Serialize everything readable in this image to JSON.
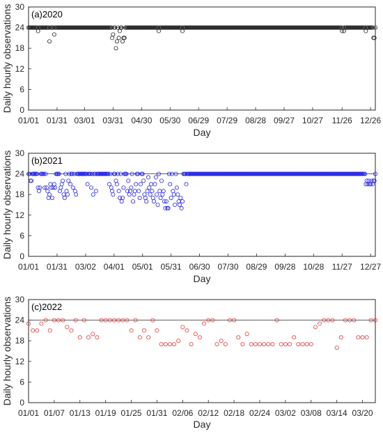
{
  "ylabel": "Daily hourly observations",
  "xlabel": "Day",
  "chart_data": [
    {
      "type": "scatter",
      "title": "(a)2020",
      "color": "#222222",
      "ylim": [
        0,
        30
      ],
      "yticks": [
        0,
        6,
        12,
        18,
        24,
        30
      ],
      "xlim": [
        0,
        365
      ],
      "xticks": [
        {
          "x": 0,
          "label": "01/01"
        },
        {
          "x": 30,
          "label": "01/31"
        },
        {
          "x": 59,
          "label": "03/01"
        },
        {
          "x": 89,
          "label": "03/31"
        },
        {
          "x": 119,
          "label": "04/30"
        },
        {
          "x": 149,
          "label": "05/30"
        },
        {
          "x": 179,
          "label": "06/29"
        },
        {
          "x": 209,
          "label": "07/29"
        },
        {
          "x": 239,
          "label": "08/28"
        },
        {
          "x": 269,
          "label": "09/27"
        },
        {
          "x": 299,
          "label": "10/27"
        },
        {
          "x": 330,
          "label": "11/26"
        },
        {
          "x": 360,
          "label": "12/26"
        }
      ],
      "grid": "y=24",
      "default_y": 24,
      "outliers": [
        [
          10,
          23
        ],
        [
          22,
          20
        ],
        [
          27,
          22
        ],
        [
          88,
          21
        ],
        [
          89,
          22
        ],
        [
          91,
          24
        ],
        [
          92,
          18
        ],
        [
          93,
          20
        ],
        [
          95,
          21
        ],
        [
          96,
          23
        ],
        [
          99,
          20
        ],
        [
          100,
          21
        ],
        [
          101,
          21
        ],
        [
          137,
          23
        ],
        [
          162,
          23
        ],
        [
          330,
          23
        ],
        [
          332,
          23
        ],
        [
          355,
          23
        ],
        [
          363,
          21
        ],
        [
          364,
          21
        ]
      ]
    },
    {
      "type": "scatter",
      "title": "(b)2021",
      "color": "#2323e6",
      "ylim": [
        0,
        30
      ],
      "yticks": [
        0,
        6,
        12,
        18,
        24,
        30
      ],
      "xlim": [
        0,
        365
      ],
      "xticks": [
        {
          "x": 0,
          "label": "01/01"
        },
        {
          "x": 30,
          "label": "01/31"
        },
        {
          "x": 60,
          "label": "03/02"
        },
        {
          "x": 90,
          "label": "04/01"
        },
        {
          "x": 120,
          "label": "05/01"
        },
        {
          "x": 150,
          "label": "05/31"
        },
        {
          "x": 180,
          "label": "06/30"
        },
        {
          "x": 210,
          "label": "07/30"
        },
        {
          "x": 240,
          "label": "08/29"
        },
        {
          "x": 270,
          "label": "09/28"
        },
        {
          "x": 300,
          "label": "10/28"
        },
        {
          "x": 330,
          "label": "11/27"
        },
        {
          "x": 360,
          "label": "12/27"
        }
      ],
      "grid": "y=24",
      "default_y": 24,
      "outliers": [
        [
          2,
          22
        ],
        [
          3,
          22
        ],
        [
          10,
          20
        ],
        [
          11,
          19
        ],
        [
          12,
          20
        ],
        [
          17,
          20
        ],
        [
          19,
          20
        ],
        [
          20,
          19
        ],
        [
          21,
          17
        ],
        [
          22,
          18
        ],
        [
          23,
          21
        ],
        [
          24,
          20
        ],
        [
          25,
          17
        ],
        [
          26,
          20
        ],
        [
          27,
          21
        ],
        [
          28,
          20
        ],
        [
          29,
          24
        ],
        [
          33,
          19
        ],
        [
          34,
          20
        ],
        [
          35,
          21
        ],
        [
          36,
          22
        ],
        [
          37,
          18
        ],
        [
          38,
          17
        ],
        [
          40,
          19
        ],
        [
          41,
          18
        ],
        [
          42,
          22
        ],
        [
          43,
          24
        ],
        [
          44,
          21
        ],
        [
          47,
          20
        ],
        [
          49,
          19
        ],
        [
          50,
          18
        ],
        [
          51,
          24
        ],
        [
          62,
          21
        ],
        [
          66,
          20
        ],
        [
          68,
          18
        ],
        [
          71,
          19
        ],
        [
          74,
          24
        ],
        [
          85,
          21
        ],
        [
          87,
          20
        ],
        [
          88,
          19
        ],
        [
          89,
          18
        ],
        [
          90,
          24
        ],
        [
          92,
          22
        ],
        [
          93,
          21
        ],
        [
          95,
          19
        ],
        [
          96,
          17
        ],
        [
          97,
          24
        ],
        [
          98,
          16
        ],
        [
          99,
          17
        ],
        [
          100,
          20
        ],
        [
          102,
          24
        ],
        [
          103,
          24
        ],
        [
          104,
          19
        ],
        [
          105,
          22
        ],
        [
          106,
          18
        ],
        [
          107,
          19
        ],
        [
          108,
          20
        ],
        [
          110,
          16
        ],
        [
          111,
          18
        ],
        [
          112,
          19
        ],
        [
          113,
          21
        ],
        [
          114,
          24
        ],
        [
          116,
          19
        ],
        [
          117,
          17
        ],
        [
          118,
          21
        ],
        [
          120,
          24
        ],
        [
          121,
          22
        ],
        [
          122,
          18
        ],
        [
          123,
          17
        ],
        [
          124,
          16
        ],
        [
          125,
          19
        ],
        [
          126,
          23
        ],
        [
          127,
          20
        ],
        [
          128,
          18
        ],
        [
          129,
          21
        ],
        [
          130,
          19
        ],
        [
          131,
          17
        ],
        [
          132,
          16
        ],
        [
          133,
          21
        ],
        [
          134,
          23
        ],
        [
          135,
          18
        ],
        [
          136,
          15
        ],
        [
          137,
          24
        ],
        [
          138,
          19
        ],
        [
          139,
          17
        ],
        [
          140,
          22
        ],
        [
          141,
          18
        ],
        [
          142,
          19
        ],
        [
          143,
          16
        ],
        [
          144,
          14
        ],
        [
          145,
          16
        ],
        [
          146,
          14
        ],
        [
          147,
          14
        ],
        [
          148,
          24
        ],
        [
          149,
          21
        ],
        [
          150,
          17
        ],
        [
          151,
          24
        ],
        [
          152,
          19
        ],
        [
          153,
          18
        ],
        [
          154,
          15
        ],
        [
          155,
          24
        ],
        [
          156,
          20
        ],
        [
          157,
          18
        ],
        [
          158,
          16
        ],
        [
          159,
          15
        ],
        [
          160,
          17
        ],
        [
          161,
          14
        ],
        [
          162,
          16
        ],
        [
          166,
          21
        ],
        [
          355,
          21
        ],
        [
          356,
          22
        ],
        [
          357,
          21
        ],
        [
          358,
          22
        ],
        [
          359,
          21
        ],
        [
          360,
          21
        ],
        [
          361,
          22
        ],
        [
          362,
          21
        ],
        [
          363,
          22
        ],
        [
          364,
          22
        ]
      ]
    },
    {
      "type": "scatter",
      "title": "(c)2022",
      "color": "#e23a3a",
      "ylim": [
        0,
        30
      ],
      "yticks": [
        0,
        6,
        12,
        18,
        24,
        30
      ],
      "xlim": [
        0,
        81
      ],
      "xticks": [
        {
          "x": 0,
          "label": "01/01"
        },
        {
          "x": 6,
          "label": "01/07"
        },
        {
          "x": 12,
          "label": "01/13"
        },
        {
          "x": 18,
          "label": "01/19"
        },
        {
          "x": 24,
          "label": "01/25"
        },
        {
          "x": 30,
          "label": "01/31"
        },
        {
          "x": 36,
          "label": "02/06"
        },
        {
          "x": 42,
          "label": "02/12"
        },
        {
          "x": 48,
          "label": "02/18"
        },
        {
          "x": 54,
          "label": "02/24"
        },
        {
          "x": 60,
          "label": "03/02"
        },
        {
          "x": 66,
          "label": "03/08"
        },
        {
          "x": 72,
          "label": "03/14"
        },
        {
          "x": 78,
          "label": "03/20"
        }
      ],
      "grid": "y=24",
      "x": [
        0,
        1,
        2,
        3,
        4,
        5,
        6,
        7,
        8,
        9,
        10,
        11,
        12,
        13,
        14,
        15,
        16,
        17,
        18,
        19,
        20,
        21,
        22,
        23,
        24,
        25,
        26,
        27,
        28,
        29,
        30,
        31,
        32,
        33,
        34,
        35,
        36,
        37,
        38,
        39,
        40,
        41,
        42,
        43,
        44,
        45,
        46,
        47,
        48,
        49,
        50,
        51,
        52,
        53,
        54,
        55,
        56,
        57,
        58,
        59,
        60,
        61,
        62,
        63,
        64,
        65,
        66,
        67,
        68,
        69,
        70,
        71,
        72,
        73,
        74,
        75,
        76,
        77,
        78,
        79,
        80,
        81
      ],
      "y": [
        23,
        21,
        21,
        23,
        24,
        21,
        24,
        24,
        24,
        22,
        21,
        24,
        19,
        24,
        19,
        20,
        19,
        24,
        24,
        24,
        24,
        24,
        24,
        24,
        21,
        24,
        19,
        21,
        19,
        24,
        21,
        17,
        17,
        17,
        17,
        18,
        22,
        21,
        17,
        20,
        19,
        23,
        24,
        24,
        17,
        18,
        17,
        24,
        24,
        19,
        17,
        20,
        17,
        17,
        17,
        17,
        17,
        17,
        24,
        17,
        17,
        17,
        19,
        17,
        17,
        17,
        17,
        22,
        23,
        24,
        24,
        24,
        16,
        19,
        24,
        24,
        24,
        19,
        19,
        19,
        24,
        24
      ]
    }
  ]
}
